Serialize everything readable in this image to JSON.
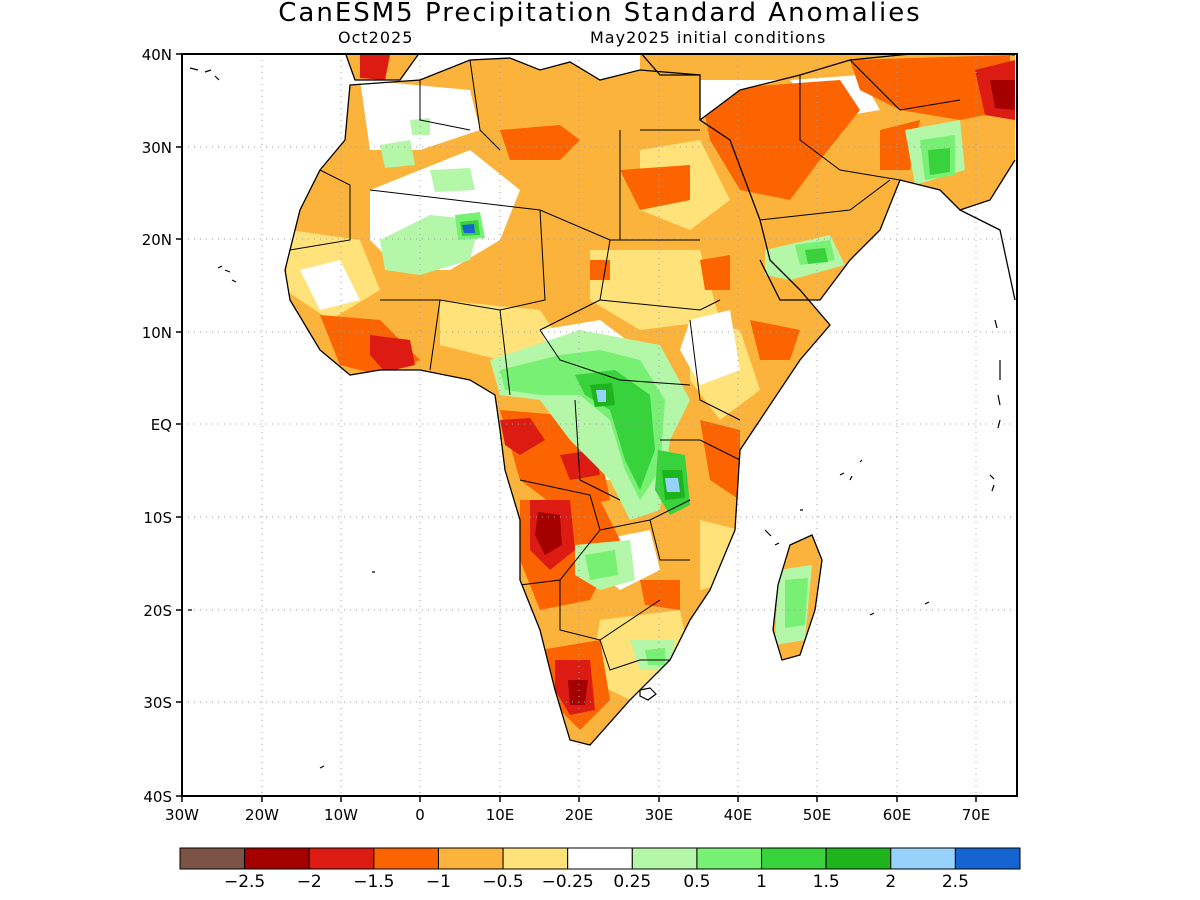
{
  "title": "CanESM5 Precipitation Standard Anomalies",
  "subtitle_left": "Oct2025",
  "subtitle_right": "May2025 initial conditions",
  "lat_ticks": [
    "40N",
    "30N",
    "20N",
    "10N",
    "EQ",
    "10S",
    "20S",
    "30S",
    "40S"
  ],
  "lon_ticks": [
    "30W",
    "20W",
    "10W",
    "0",
    "10E",
    "20E",
    "30E",
    "40E",
    "50E",
    "60E",
    "70E"
  ],
  "colorbar": {
    "colors": [
      "#7b5246",
      "#a50000",
      "#dc1b13",
      "#fb6400",
      "#fbb33c",
      "#ffe27a",
      "#ffffff",
      "#b4f7a9",
      "#78f073",
      "#37d23c",
      "#1eb41e",
      "#96d2fa",
      "#1464d2"
    ],
    "labels": [
      "-2.5",
      "-2",
      "-1.5",
      "-1",
      "-0.5",
      "-0.25",
      "0.25",
      "0.5",
      "1",
      "1.5",
      "2",
      "2.5"
    ]
  },
  "colors": {
    "ocean": "#ffffff",
    "coast": "#000000",
    "grid": "#a0a0a0"
  }
}
